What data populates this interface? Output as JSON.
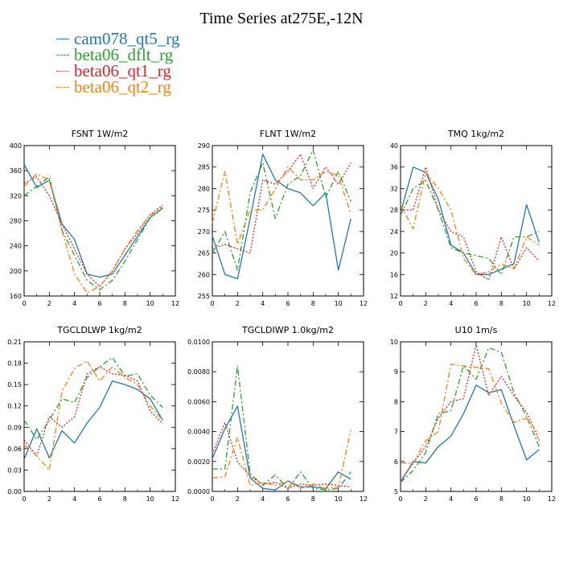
{
  "title": "Time Series at275E,-12N",
  "legend": [
    {
      "label": "cam078_qt5_rg",
      "color": "#1f77b4",
      "dash": "solid"
    },
    {
      "label": "beta06_dflt_rg",
      "color": "#2ca02c",
      "dash": "dashdot"
    },
    {
      "label": "beta06_qt1_rg",
      "color": "#d62728",
      "dash": "dotted"
    },
    {
      "label": "beta06_qt2_rg",
      "color": "#ff7f0e",
      "dash": "dashdot"
    }
  ],
  "chart_data": [
    {
      "type": "line",
      "title": "FSNT",
      "units": "1W/m2",
      "xlim": [
        0,
        12
      ],
      "ylim": [
        160,
        400
      ],
      "xticks": [
        "0",
        "2",
        "4",
        "6",
        "8",
        "10",
        "12"
      ],
      "yticks": [
        "160",
        "200",
        "240",
        "280",
        "320",
        "360",
        "400"
      ],
      "x": [
        0,
        1,
        2,
        3,
        4,
        5,
        6,
        7,
        8,
        9,
        10,
        11
      ],
      "series": [
        {
          "name": "cam078_qt5_rg",
          "values": [
            370,
            333,
            345,
            275,
            250,
            195,
            190,
            195,
            225,
            255,
            285,
            300
          ]
        },
        {
          "name": "beta06_dflt_rg",
          "values": [
            320,
            335,
            350,
            265,
            225,
            185,
            170,
            185,
            215,
            250,
            285,
            300
          ]
        },
        {
          "name": "beta06_qt1_rg",
          "values": [
            340,
            350,
            320,
            275,
            235,
            195,
            175,
            200,
            235,
            260,
            290,
            305
          ]
        },
        {
          "name": "beta06_qt2_rg",
          "values": [
            335,
            355,
            345,
            265,
            195,
            165,
            175,
            200,
            235,
            265,
            288,
            302
          ]
        }
      ]
    },
    {
      "type": "line",
      "title": "FLNT",
      "units": "1W/m2",
      "xlim": [
        0,
        12
      ],
      "ylim": [
        255,
        290
      ],
      "xticks": [
        "0",
        "2",
        "4",
        "6",
        "8",
        "10",
        "12"
      ],
      "yticks": [
        "255",
        "260",
        "265",
        "270",
        "275",
        "280",
        "285",
        "290"
      ],
      "x": [
        0,
        1,
        2,
        3,
        4,
        5,
        6,
        7,
        8,
        9,
        10,
        11
      ],
      "series": [
        {
          "name": "cam078_qt5_rg",
          "values": [
            269,
            260,
            259,
            273,
            288,
            282,
            280,
            279,
            276,
            279,
            261,
            273
          ]
        },
        {
          "name": "beta06_dflt_rg",
          "values": [
            265,
            270,
            261,
            279,
            286,
            273,
            281,
            283,
            289,
            278,
            284,
            277
          ]
        },
        {
          "name": "beta06_qt1_rg",
          "values": [
            266,
            267,
            266,
            265,
            282,
            281,
            284,
            288,
            280,
            285,
            281,
            286
          ]
        },
        {
          "name": "beta06_qt2_rg",
          "values": [
            272,
            284,
            267,
            275,
            275,
            280,
            285,
            282,
            282,
            284,
            283,
            274
          ]
        }
      ]
    },
    {
      "type": "line",
      "title": "TMQ",
      "units": "1kg/m2",
      "xlim": [
        0,
        12
      ],
      "ylim": [
        12,
        40
      ],
      "xticks": [
        "0",
        "2",
        "4",
        "6",
        "8",
        "10",
        "12"
      ],
      "yticks": [
        "12",
        "16",
        "20",
        "24",
        "28",
        "32",
        "36",
        "40"
      ],
      "x": [
        0,
        1,
        2,
        3,
        4,
        5,
        6,
        7,
        8,
        9,
        10,
        11
      ],
      "series": [
        {
          "name": "cam078_qt5_rg",
          "values": [
            27.5,
            36,
            35,
            30,
            21.5,
            20,
            16,
            16,
            17,
            18,
            29,
            22
          ]
        },
        {
          "name": "beta06_dflt_rg",
          "values": [
            27,
            32,
            33.5,
            28,
            21,
            20,
            19.5,
            19,
            16,
            23,
            23,
            24
          ]
        },
        {
          "name": "beta06_qt1_rg",
          "values": [
            28,
            28,
            36,
            28,
            24,
            23,
            16.5,
            15,
            23,
            17,
            21,
            18.5
          ]
        },
        {
          "name": "beta06_qt2_rg",
          "values": [
            29,
            24.5,
            35,
            32,
            28,
            19,
            16,
            16.5,
            18,
            17,
            23,
            21.5
          ]
        }
      ]
    },
    {
      "type": "line",
      "title": "TGCLDLWP",
      "units": "1kg/m2",
      "xlim": [
        0,
        12
      ],
      "ylim": [
        0,
        0.21
      ],
      "xticks": [
        "0",
        "2",
        "4",
        "6",
        "8",
        "10",
        "12"
      ],
      "yticks": [
        "0.00",
        "0.03",
        "0.06",
        "0.09",
        "0.12",
        "0.15",
        "0.18",
        "0.21"
      ],
      "x": [
        0,
        1,
        2,
        3,
        4,
        5,
        6,
        7,
        8,
        9,
        10,
        11
      ],
      "series": [
        {
          "name": "cam078_qt5_rg",
          "values": [
            0.045,
            0.088,
            0.047,
            0.085,
            0.068,
            0.096,
            0.118,
            0.155,
            0.15,
            0.143,
            0.13,
            0.1
          ]
        },
        {
          "name": "beta06_dflt_rg",
          "values": [
            0.1,
            0.073,
            0.1,
            0.13,
            0.125,
            0.16,
            0.175,
            0.188,
            0.162,
            0.165,
            0.135,
            0.118
          ]
        },
        {
          "name": "beta06_qt1_rg",
          "values": [
            0.072,
            0.05,
            0.105,
            0.09,
            0.105,
            0.165,
            0.175,
            0.165,
            0.163,
            0.155,
            0.113,
            0.095
          ]
        },
        {
          "name": "beta06_qt2_rg",
          "values": [
            0.065,
            0.05,
            0.03,
            0.14,
            0.173,
            0.183,
            0.155,
            0.175,
            0.16,
            0.15,
            0.12,
            0.1
          ]
        }
      ]
    },
    {
      "type": "line",
      "title": "TGCLDIWP",
      "units": "1.0kg/m2",
      "xlim": [
        0,
        12
      ],
      "ylim": [
        0,
        0.01
      ],
      "xticks": [
        "0",
        "2",
        "4",
        "6",
        "8",
        "10",
        "12"
      ],
      "yticks": [
        "0.0000",
        "0.0020",
        "0.0040",
        "0.0060",
        "0.0080",
        "0.0100"
      ],
      "x": [
        0,
        1,
        2,
        3,
        4,
        5,
        6,
        7,
        8,
        9,
        10,
        11
      ],
      "series": [
        {
          "name": "cam078_qt5_rg",
          "values": [
            0.0022,
            0.0042,
            0.0057,
            0.0009,
            0.0002,
            0.0001,
            0.0007,
            0.0003,
            0.0003,
            0.0002,
            0.0013,
            0.0008
          ]
        },
        {
          "name": "beta06_dflt_rg",
          "values": [
            0.0015,
            0.0015,
            0.0084,
            0.0012,
            0.0004,
            0.0011,
            0.0002,
            0.0013,
            0.0002,
            0.0001,
            0.0002,
            0.0013
          ]
        },
        {
          "name": "beta06_qt1_rg",
          "values": [
            0.0025,
            0.0046,
            0.002,
            0.001,
            0.0005,
            0.0006,
            0.0002,
            0.0005,
            0.0004,
            0.0005,
            0.0004,
            0.0003
          ]
        },
        {
          "name": "beta06_qt2_rg",
          "values": [
            0.0009,
            0.001,
            0.0036,
            0.0004,
            0.0006,
            0.0004,
            0.0007,
            0.0002,
            0.0005,
            0.0002,
            0.0003,
            0.0041
          ]
        }
      ]
    },
    {
      "type": "line",
      "title": "U10",
      "units": "1m/s",
      "xlim": [
        0,
        12
      ],
      "ylim": [
        5,
        10
      ],
      "xticks": [
        "0",
        "2",
        "4",
        "6",
        "8",
        "10",
        "12"
      ],
      "yticks": [
        "5",
        "6",
        "7",
        "8",
        "9",
        "10"
      ],
      "x": [
        0,
        1,
        2,
        3,
        4,
        5,
        6,
        7,
        8,
        9,
        10,
        11
      ],
      "series": [
        {
          "name": "cam078_qt5_rg",
          "values": [
            5.3,
            6.0,
            5.95,
            6.5,
            6.85,
            7.6,
            8.55,
            8.3,
            8.4,
            7.2,
            6.05,
            6.4
          ]
        },
        {
          "name": "beta06_dflt_rg",
          "values": [
            5.3,
            5.7,
            6.3,
            7.6,
            7.7,
            9.2,
            8.75,
            9.8,
            9.65,
            8.3,
            7.5,
            6.5
          ]
        },
        {
          "name": "beta06_qt1_rg",
          "values": [
            5.35,
            5.95,
            6.5,
            7.45,
            8.0,
            8.1,
            9.9,
            8.2,
            8.85,
            8.2,
            7.65,
            6.7
          ]
        },
        {
          "name": "beta06_qt2_rg",
          "values": [
            5.95,
            5.95,
            6.7,
            7.0,
            9.25,
            9.2,
            9.15,
            9.1,
            7.95,
            7.3,
            7.45,
            6.9
          ]
        }
      ]
    }
  ]
}
